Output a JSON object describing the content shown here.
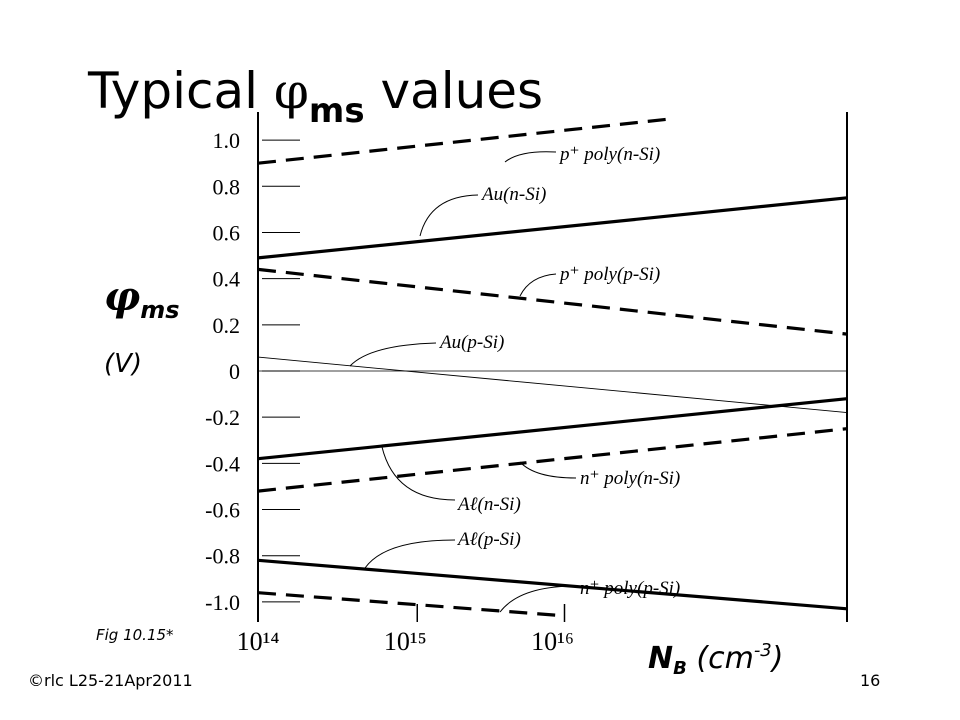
{
  "chart_data": {
    "type": "line",
    "title": [
      "Typical ",
      "φ",
      "ms",
      " values"
    ],
    "y_label": [
      "φ",
      "ms"
    ],
    "y_unit": "(V)",
    "x_label": [
      "N",
      "B",
      " (cm",
      "-3",
      ")"
    ],
    "x_log": true,
    "xlim": [
      100000000000000.0,
      1e+18
    ],
    "xticks": [
      {
        "value": 100000000000000.0,
        "label": "10¹⁴"
      },
      {
        "value": 1000000000000000.0,
        "label": "10¹⁵"
      },
      {
        "value": 1e+16,
        "label": "10¹⁶"
      }
    ],
    "ylim": [
      -1.1,
      1.1
    ],
    "yticks": [
      {
        "value": 1.0,
        "label": "1.0"
      },
      0.8,
      0.6,
      0.4,
      0.2,
      0,
      -0.2,
      -0.4,
      -0.6,
      -0.8,
      {
        "value": -1.0,
        "label": "-1.0"
      }
    ],
    "zero_line": true,
    "series": [
      {
        "name": "p⁺ poly(n-Si)",
        "color": "#000",
        "style": "dashed",
        "x": [
          100000000000000.0,
          6e+16
        ],
        "values": [
          0.9,
          1.09
        ]
      },
      {
        "name": "Au(n-Si)",
        "color": "#000",
        "style": "solid",
        "x": [
          100000000000000.0,
          1e+18
        ],
        "values": [
          0.49,
          0.75
        ]
      },
      {
        "name": "p⁺ poly(p-Si)",
        "color": "#000",
        "style": "dashed",
        "x": [
          100000000000000.0,
          1e+18
        ],
        "values": [
          0.44,
          0.16
        ]
      },
      {
        "name": "Au(p-Si)",
        "color": "#000",
        "style": "thin",
        "x": [
          100000000000000.0,
          1e+18
        ],
        "values": [
          0.06,
          -0.18
        ]
      },
      {
        "name": "Aℓ(n-Si)",
        "color": "#000",
        "style": "solid",
        "x": [
          100000000000000.0,
          1e+18
        ],
        "values": [
          -0.38,
          -0.12
        ]
      },
      {
        "name": "n⁺ poly(n-Si)",
        "color": "#000",
        "style": "dashed",
        "x": [
          100000000000000.0,
          1e+18
        ],
        "values": [
          -0.52,
          -0.25
        ]
      },
      {
        "name": "Aℓ(p-Si)",
        "color": "#000",
        "style": "solid",
        "x": [
          100000000000000.0,
          1e+18
        ],
        "values": [
          -0.82,
          -1.03
        ]
      },
      {
        "name": "n⁺ poly(p-Si)",
        "color": "#000",
        "style": "dashed",
        "x": [
          100000000000000.0,
          1.2e+16
        ],
        "values": [
          -0.96,
          -1.06
        ]
      }
    ]
  },
  "figure_label": "Fig 10.15*",
  "footer": "©rlc L25-21Apr2011",
  "page_number": "16"
}
